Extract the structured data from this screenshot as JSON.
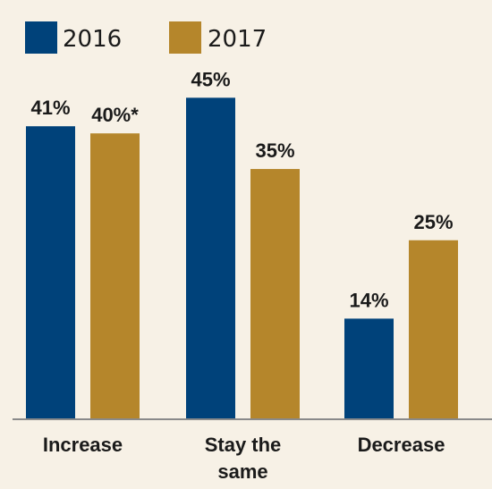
{
  "chart_data": {
    "type": "bar",
    "title": "",
    "xlabel": "",
    "ylabel": "",
    "ylim": [
      0,
      45
    ],
    "grid": false,
    "legend_position": "top-left",
    "categories": [
      "Increase",
      "Stay the same",
      "Decrease"
    ],
    "category_lines": [
      [
        "Increase"
      ],
      [
        "Stay the",
        "same"
      ],
      [
        "Decrease"
      ]
    ],
    "series": [
      {
        "name": "2016",
        "color": "#00427a",
        "values": [
          41,
          45,
          14
        ],
        "labels": [
          "41%",
          "45%",
          "14%"
        ]
      },
      {
        "name": "2017",
        "color": "#b5862b",
        "values": [
          40,
          35,
          25
        ],
        "labels": [
          "40%*",
          "35%",
          "25%"
        ]
      }
    ]
  }
}
